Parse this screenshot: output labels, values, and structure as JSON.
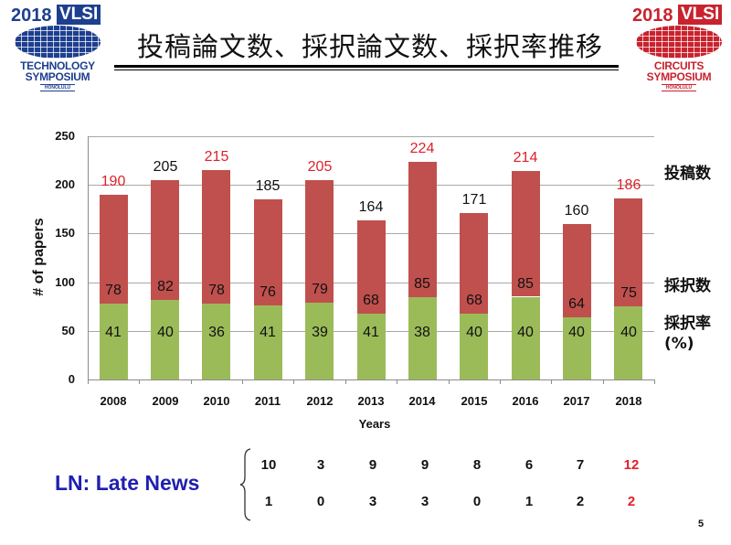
{
  "logos": {
    "left": {
      "year": "2018",
      "badge": "VLSI",
      "line1": "TECHNOLOGY",
      "line2": "SYMPOSIUM",
      "line3": "HONOLULU",
      "color": "#1e3f8f"
    },
    "right": {
      "year": "2018",
      "badge": "VLSI",
      "line1": "CIRCUITS",
      "line2": "SYMPOSIUM",
      "line3": "HONOLULU",
      "color": "#c8232e"
    }
  },
  "title": "投稿論文数、採択論文数、採択率推移",
  "chart_data": {
    "type": "bar",
    "stacked": true,
    "title": "投稿論文数、採択論文数、採択率推移",
    "xlabel": "Years",
    "ylabel": "# of papers",
    "ylim": [
      0,
      250
    ],
    "yticks": [
      0,
      50,
      100,
      150,
      200,
      250
    ],
    "grid": true,
    "categories": [
      "2008",
      "2009",
      "2010",
      "2011",
      "2012",
      "2013",
      "2014",
      "2015",
      "2016",
      "2017",
      "2018"
    ],
    "series": [
      {
        "name": "採択数",
        "color": "#9bbb59",
        "values": [
          78,
          82,
          78,
          76,
          79,
          68,
          85,
          68,
          85,
          64,
          75
        ]
      },
      {
        "name": "投稿数",
        "color": "#c0504d",
        "values": [
          190,
          205,
          215,
          185,
          205,
          164,
          224,
          171,
          214,
          160,
          186
        ]
      }
    ],
    "acceptance_rate_pct": [
      41,
      40,
      36,
      41,
      39,
      41,
      38,
      40,
      40,
      40,
      40
    ],
    "total_label_colors": [
      "#e0202a",
      "#111111",
      "#e0202a",
      "#111111",
      "#e0202a",
      "#111111",
      "#e0202a",
      "#111111",
      "#e0202a",
      "#111111",
      "#e0202a"
    ],
    "legend": [
      "投稿数",
      "採択数",
      "採択率 (%)"
    ],
    "legend_position": "right"
  },
  "legend_labels": {
    "submitted": "投稿数",
    "accepted": "採択数",
    "rate": "採択率",
    "rate_unit": "(%)"
  },
  "late_news": {
    "label": "LN: Late News",
    "submitted": [
      "10",
      "3",
      "9",
      "9",
      "8",
      "6",
      "7",
      "12"
    ],
    "accepted": [
      "1",
      "0",
      "3",
      "3",
      "0",
      "1",
      "2",
      "2"
    ],
    "highlight_color": "#e0202a"
  },
  "page_number": "5"
}
